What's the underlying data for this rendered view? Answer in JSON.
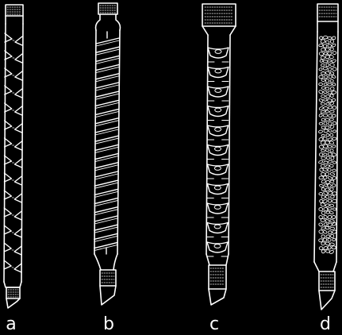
{
  "figure": {
    "columns": [
      {
        "label": "a",
        "packing": "vigreux-indentations"
      },
      {
        "label": "b",
        "packing": "spiral-rod"
      },
      {
        "label": "c",
        "packing": "bubble-cap-plates"
      },
      {
        "label": "d",
        "packing": "random-ring-packing"
      }
    ],
    "colors": {
      "background": "#000000",
      "line": "#ffffff"
    }
  }
}
